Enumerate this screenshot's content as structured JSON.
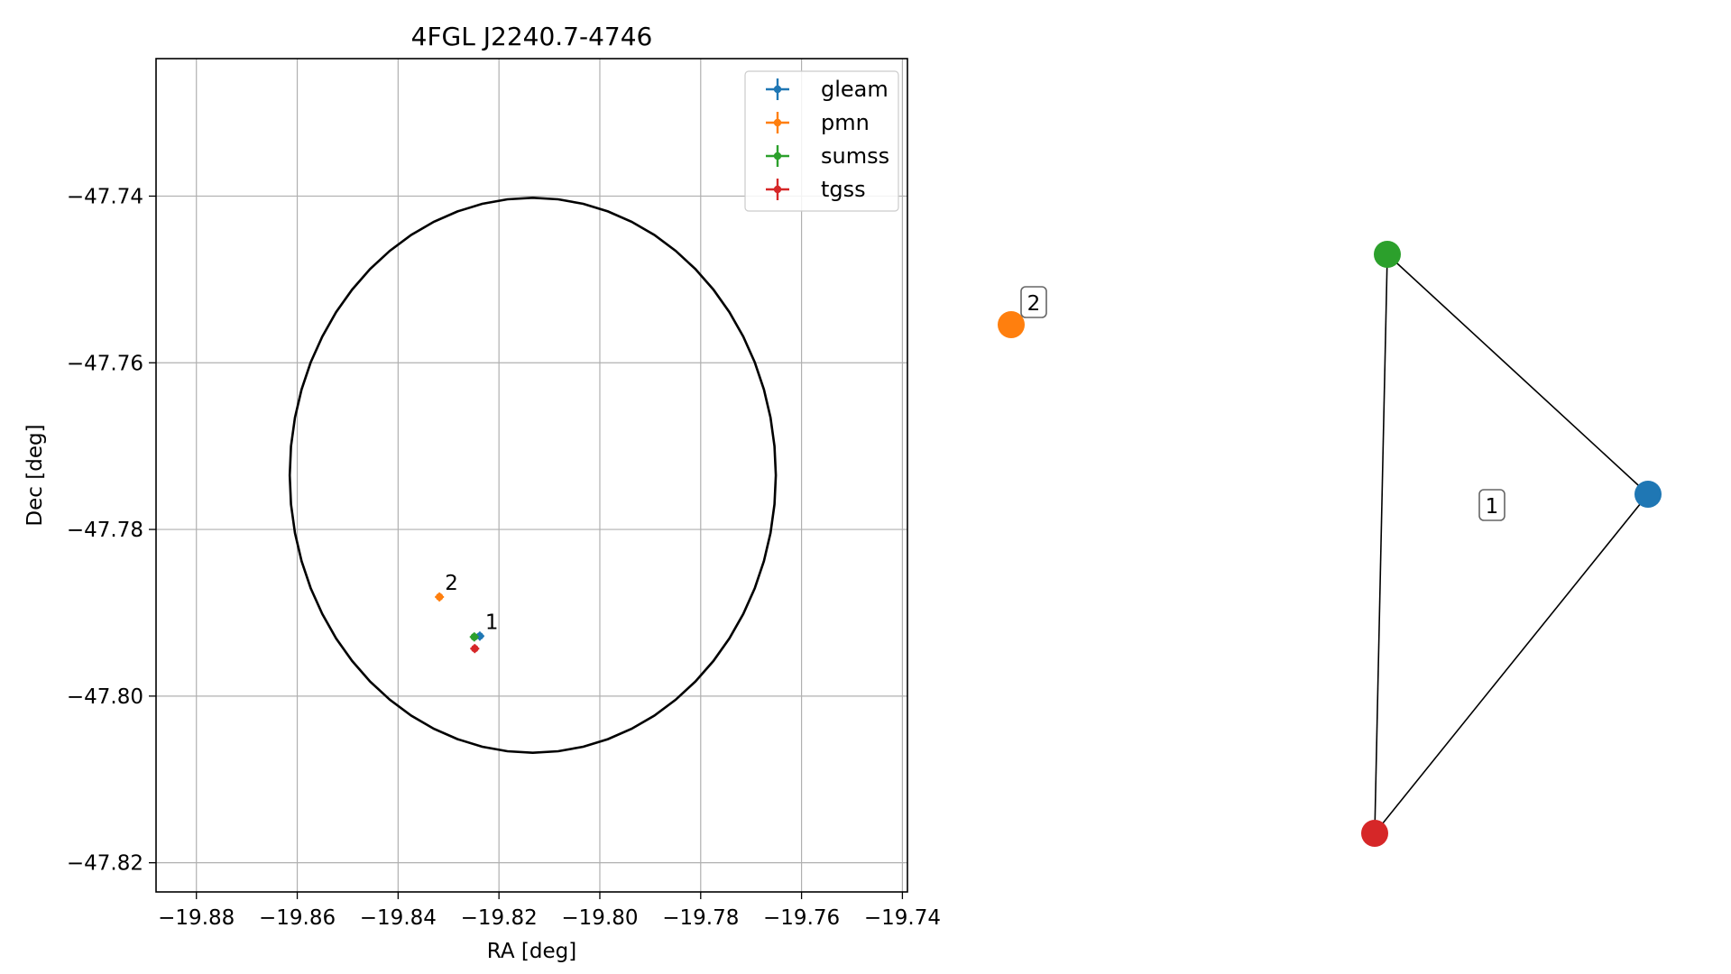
{
  "chart_data": [
    {
      "type": "scatter",
      "title": "4FGL J2240.7-4746",
      "xlabel": "RA [deg]",
      "ylabel": "Dec [deg]",
      "xlim": [
        -19.888,
        -19.739
      ],
      "ylim": [
        -47.8235,
        -47.7235
      ],
      "xticks": [
        -19.88,
        -19.86,
        -19.84,
        -19.82,
        -19.8,
        -19.78,
        -19.76,
        -19.74
      ],
      "xtick_labels": [
        "−19.88",
        "−19.86",
        "−19.84",
        "−19.82",
        "−19.80",
        "−19.78",
        "−19.76",
        "−19.74"
      ],
      "yticks": [
        -47.74,
        -47.76,
        -47.78,
        -47.8,
        -47.82
      ],
      "ytick_labels": [
        "−47.74",
        "−47.76",
        "−47.78",
        "−47.80",
        "−47.82"
      ],
      "grid": true,
      "legend_position": "upper-right",
      "series": [
        {
          "name": "gleam",
          "color": "#1f77b4",
          "points": [
            {
              "x": -19.8238,
              "y": -47.7928
            }
          ]
        },
        {
          "name": "pmn",
          "color": "#ff7f0e",
          "points": [
            {
              "x": -19.8318,
              "y": -47.7881
            }
          ]
        },
        {
          "name": "sumss",
          "color": "#2ca02c",
          "points": [
            {
              "x": -19.8249,
              "y": -47.7929
            }
          ]
        },
        {
          "name": "tgss",
          "color": "#d62728",
          "points": [
            {
              "x": -19.8248,
              "y": -47.7943
            }
          ]
        }
      ],
      "ellipse": {
        "center_x": -19.8133,
        "center_y": -47.7735,
        "semi_axis_ra": 0.0482,
        "semi_axis_dec": 0.0333,
        "color": "#000000"
      },
      "annotations": [
        {
          "text": "1",
          "x": -19.8238,
          "y": -47.7928
        },
        {
          "text": "2",
          "x": -19.8318,
          "y": -47.7881
        }
      ]
    },
    {
      "type": "network",
      "nodes": [
        {
          "id": "gleam",
          "color": "#1f77b4"
        },
        {
          "id": "pmn",
          "color": "#ff7f0e"
        },
        {
          "id": "sumss",
          "color": "#2ca02c"
        },
        {
          "id": "tgss",
          "color": "#d62728"
        }
      ],
      "edges": [
        [
          "gleam",
          "sumss"
        ],
        [
          "gleam",
          "tgss"
        ],
        [
          "sumss",
          "tgss"
        ]
      ],
      "group_labels": [
        {
          "text": "1",
          "members": [
            "gleam",
            "sumss",
            "tgss"
          ]
        },
        {
          "text": "2",
          "members": [
            "pmn"
          ]
        }
      ]
    }
  ]
}
